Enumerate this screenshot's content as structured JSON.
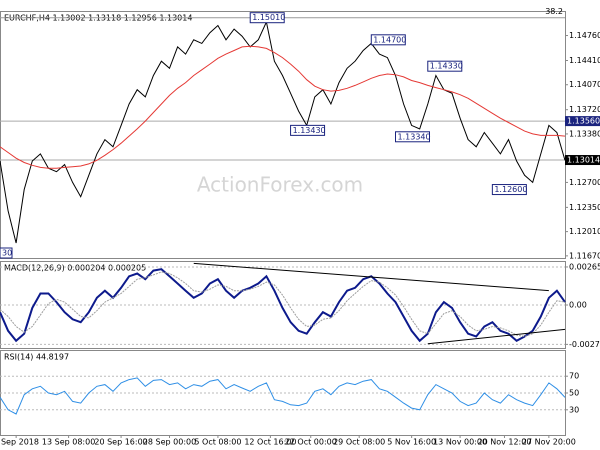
{
  "xaxis": {
    "xlim": [
      0,
      70
    ],
    "xticks": [
      {
        "value": 2,
        "label": "6 Sep 2018"
      },
      {
        "value": 8.5,
        "label": "13 Sep 08:00"
      },
      {
        "value": 15,
        "label": "20 Sep 16:00"
      },
      {
        "value": 21,
        "label": "28 Sep 00:00"
      },
      {
        "value": 27,
        "label": "5 Oct 08:00"
      },
      {
        "value": 33.5,
        "label": "12 Oct 16:00"
      },
      {
        "value": 38.5,
        "label": "22 Oct 00:00"
      },
      {
        "value": 44.5,
        "label": "29 Oct 08:00"
      },
      {
        "value": 51,
        "label": "5 Nov 16:00"
      },
      {
        "value": 57,
        "label": "13 Nov 00:00"
      },
      {
        "value": 62.5,
        "label": "20 Nov 12:00"
      },
      {
        "value": 68,
        "label": "27 Nov 20:00"
      }
    ]
  },
  "watermark": "ActionForex.com",
  "chart_data": [
    {
      "type": "line",
      "title": "EURCHF,H4  1.13002 1.13118 1.12956 1.13014",
      "ylim": [
        1.1164,
        1.1509
      ],
      "yticks": [
        {
          "value": 1.1476,
          "label": "1.14760"
        },
        {
          "value": 1.1441,
          "label": "1.14410"
        },
        {
          "value": 1.1407,
          "label": "1.14070"
        },
        {
          "value": 1.1372,
          "label": "1.13720"
        },
        {
          "value": 1.1338,
          "label": "1.13380"
        },
        {
          "value": 1.127,
          "label": "1.12700"
        },
        {
          "value": 1.1235,
          "label": "1.12350"
        },
        {
          "value": 1.1201,
          "label": "1.12010"
        },
        {
          "value": 1.1167,
          "label": "1.11670"
        }
      ],
      "fib": {
        "value": 1.1501,
        "label": "38.2"
      },
      "levels": [
        {
          "value": 1.1356,
          "label": "1.13560",
          "color": "#1a237e"
        },
        {
          "value": 1.13014,
          "label": "1.13014",
          "color": "#000000"
        }
      ],
      "annotations": [
        {
          "label": "1.15010",
          "value": 1.1501
        },
        {
          "label": "1.14700",
          "value": 1.147
        },
        {
          "label": "1.14330",
          "value": 1.1433
        },
        {
          "label": "1.13430",
          "value": 1.1343
        },
        {
          "label": "1.13340",
          "value": 1.1334
        },
        {
          "label": "1.12600",
          "value": 1.126
        },
        {
          "label": "30"
        }
      ],
      "series": [
        {
          "name": "EURCHF",
          "color": "#000000",
          "values": [
            1.13,
            1.123,
            1.1185,
            1.126,
            1.13,
            1.131,
            1.129,
            1.1285,
            1.1295,
            1.127,
            1.125,
            1.128,
            1.131,
            1.133,
            1.132,
            1.135,
            1.138,
            1.14,
            1.139,
            1.142,
            1.144,
            1.143,
            1.146,
            1.145,
            1.147,
            1.1465,
            1.148,
            1.149,
            1.147,
            1.1485,
            1.1475,
            1.146,
            1.147,
            1.1495,
            1.144,
            1.142,
            1.1395,
            1.137,
            1.135,
            1.139,
            1.14,
            1.138,
            1.141,
            1.143,
            1.144,
            1.1455,
            1.1465,
            1.145,
            1.1445,
            1.142,
            1.138,
            1.135,
            1.1345,
            1.138,
            1.142,
            1.14,
            1.1395,
            1.136,
            1.133,
            1.132,
            1.134,
            1.1325,
            1.131,
            1.133,
            1.13,
            1.128,
            1.127,
            1.131,
            1.135,
            1.134,
            1.1301
          ]
        },
        {
          "name": "MA",
          "color": "#e53935",
          "values": [
            1.132,
            1.1312,
            1.1304,
            1.1298,
            1.1294,
            1.1291,
            1.129,
            1.129,
            1.1291,
            1.1292,
            1.1293,
            1.1296,
            1.1301,
            1.1308,
            1.1316,
            1.1325,
            1.1335,
            1.1345,
            1.1356,
            1.1368,
            1.138,
            1.1392,
            1.1402,
            1.141,
            1.142,
            1.1428,
            1.1436,
            1.1444,
            1.145,
            1.1455,
            1.146,
            1.1461,
            1.146,
            1.1458,
            1.1452,
            1.1445,
            1.1436,
            1.1426,
            1.1414,
            1.1405,
            1.14,
            1.1398,
            1.1399,
            1.1402,
            1.1406,
            1.1411,
            1.1416,
            1.142,
            1.1422,
            1.1421,
            1.1418,
            1.1413,
            1.141,
            1.1406,
            1.1403,
            1.14,
            1.1397,
            1.1393,
            1.1388,
            1.1381,
            1.1374,
            1.1367,
            1.136,
            1.1354,
            1.1348,
            1.1342,
            1.1338,
            1.1336,
            1.1336,
            1.1336,
            1.1335
          ]
        }
      ]
    },
    {
      "type": "line",
      "title": "MACD(12,26,9) 0.000204 0.000205",
      "ylim": [
        -0.003,
        0.003
      ],
      "yticks": [
        0.002654,
        {
          "value": 0,
          "label": "0.00"
        },
        -0.002747
      ],
      "series": [
        {
          "name": "MACD",
          "color": "#0d1a8c",
          "width": 2,
          "values": [
            -0.0005,
            -0.0018,
            -0.0025,
            -0.002,
            -0.0002,
            0.0008,
            0.0008,
            0.0002,
            -0.0005,
            -0.001,
            -0.0012,
            -0.0005,
            0.0005,
            0.001,
            0.0005,
            0.0012,
            0.002,
            0.0022,
            0.0018,
            0.0024,
            0.0025,
            0.002,
            0.0015,
            0.001,
            0.0005,
            0.0008,
            0.0015,
            0.0018,
            0.001,
            0.0005,
            0.001,
            0.0012,
            0.0015,
            0.002,
            0.001,
            -0.0002,
            -0.0012,
            -0.0018,
            -0.002,
            -0.0012,
            -0.0005,
            -0.0008,
            0.0002,
            0.001,
            0.0012,
            0.0018,
            0.002,
            0.0015,
            0.0008,
            0.0002,
            -0.0008,
            -0.0018,
            -0.0025,
            -0.002,
            -0.0005,
            0.0002,
            -0.0002,
            -0.0012,
            -0.002,
            -0.0022,
            -0.0015,
            -0.0012,
            -0.0018,
            -0.002,
            -0.0025,
            -0.0022,
            -0.0018,
            -0.0008,
            0.0005,
            0.001,
            0.0002
          ]
        },
        {
          "name": "Signal",
          "color": "#9e9e9e",
          "width": 1,
          "values": [
            -0.0003,
            -0.0008,
            -0.0015,
            -0.0019,
            -0.0015,
            -0.0007,
            0.0001,
            0.0004,
            0.0002,
            -0.0003,
            -0.0008,
            -0.0009,
            -0.0004,
            0.0002,
            0.0005,
            0.0008,
            0.0013,
            0.0018,
            0.0019,
            0.0021,
            0.0023,
            0.0022,
            0.0019,
            0.0015,
            0.001,
            0.0009,
            0.0011,
            0.0014,
            0.0013,
            0.001,
            0.001,
            0.0011,
            0.0013,
            0.0016,
            0.0014,
            0.0007,
            -0.0002,
            -0.001,
            -0.0015,
            -0.0014,
            -0.001,
            -0.0009,
            -0.0004,
            0.0003,
            0.0008,
            0.0013,
            0.0017,
            0.0016,
            0.0012,
            0.0007,
            -0.0001,
            -0.001,
            -0.0018,
            -0.002,
            -0.0013,
            -0.0006,
            -0.0004,
            -0.0008,
            -0.0014,
            -0.0018,
            -0.0017,
            -0.0015,
            -0.0016,
            -0.0018,
            -0.0021,
            -0.0022,
            -0.002,
            -0.0014,
            -0.0005,
            0.0003,
            0.0002
          ]
        }
      ]
    },
    {
      "type": "line",
      "title": "RSI(14) 44.8197",
      "ylim": [
        0,
        100
      ],
      "yticks": [
        70,
        50,
        30
      ],
      "series": [
        {
          "name": "RSI",
          "color": "#2f8fe6",
          "width": 1,
          "values": [
            45,
            30,
            25,
            48,
            55,
            58,
            50,
            48,
            52,
            40,
            38,
            50,
            58,
            60,
            52,
            62,
            66,
            68,
            58,
            65,
            66,
            60,
            62,
            55,
            60,
            58,
            64,
            66,
            55,
            60,
            56,
            52,
            58,
            62,
            42,
            40,
            36,
            35,
            38,
            52,
            55,
            48,
            58,
            62,
            60,
            64,
            66,
            55,
            52,
            45,
            38,
            32,
            30,
            48,
            60,
            55,
            50,
            40,
            35,
            38,
            50,
            42,
            38,
            48,
            42,
            38,
            35,
            48,
            62,
            55,
            44.8
          ]
        }
      ]
    }
  ]
}
